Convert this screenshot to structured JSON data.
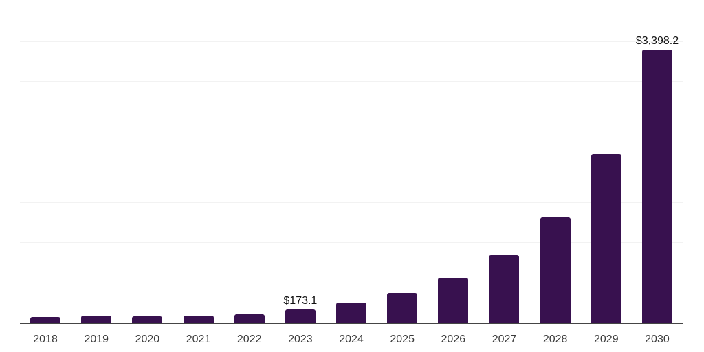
{
  "chart_data": {
    "type": "bar",
    "title": "",
    "xlabel": "",
    "ylabel": "",
    "categories": [
      "2018",
      "2019",
      "2020",
      "2021",
      "2022",
      "2023",
      "2024",
      "2025",
      "2026",
      "2027",
      "2028",
      "2029",
      "2030"
    ],
    "values": [
      77,
      91,
      83,
      96,
      113,
      173.1,
      256,
      374,
      562,
      845,
      1320,
      2105,
      3398.2
    ],
    "value_labels": [
      "",
      "",
      "",
      "",
      "",
      "$173.1",
      "",
      "",
      "",
      "",
      "",
      "",
      "$3,398.2"
    ],
    "ylim": [
      0,
      4000
    ],
    "gridline_step": 500,
    "grid": "horizontal",
    "legend": "none",
    "y_axis_tick_labels": "hidden"
  },
  "colors": {
    "background": "#FFFFFF",
    "bar": "#38114F",
    "grid": "#F2F2F2",
    "axis": "#454545",
    "data_label": "#111111",
    "tick_label": "#3B3B3B"
  }
}
